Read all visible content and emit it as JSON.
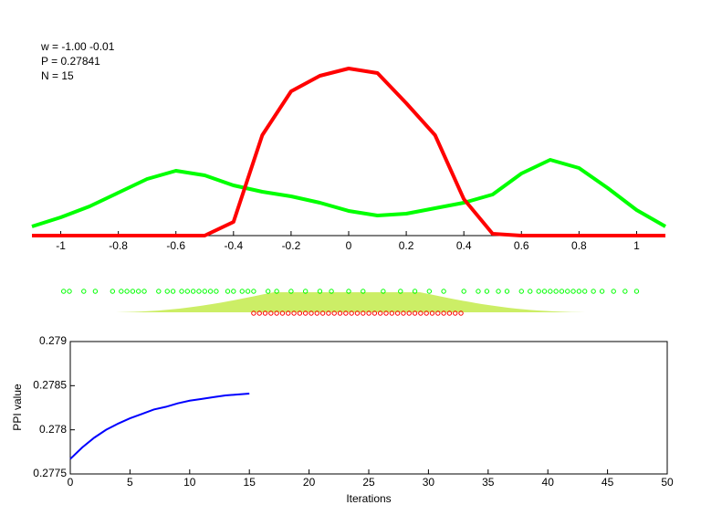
{
  "chart_data": [
    {
      "type": "line",
      "annotations": [
        "w = -1.00  -0.01",
        "P = 0.27841",
        "N = 15"
      ],
      "x": [
        -1.1,
        -1.0,
        -0.9,
        -0.8,
        -0.7,
        -0.6,
        -0.5,
        -0.4,
        -0.3,
        -0.2,
        -0.1,
        0,
        0.1,
        0.2,
        0.3,
        0.4,
        0.5,
        0.6,
        0.7,
        0.8,
        0.9,
        1.0,
        1.1
      ],
      "series": [
        {
          "color": "#00ff00",
          "values": [
            0.1,
            0.2,
            0.32,
            0.47,
            0.62,
            0.71,
            0.66,
            0.55,
            0.48,
            0.43,
            0.36,
            0.27,
            0.22,
            0.24,
            0.3,
            0.36,
            0.45,
            0.68,
            0.83,
            0.74,
            0.52,
            0.28,
            0.1
          ]
        },
        {
          "color": "#ff0000",
          "values": [
            0,
            0,
            0,
            0,
            0,
            0,
            0,
            0.15,
            1.1,
            1.58,
            1.75,
            1.83,
            1.78,
            1.45,
            1.1,
            0.4,
            0.02,
            0,
            0,
            0,
            0,
            0,
            0
          ]
        }
      ],
      "xlim": [
        -1.1,
        1.1
      ],
      "xticks": [
        -1,
        -0.8,
        -0.6,
        -0.4,
        -0.2,
        0,
        0.2,
        0.4,
        0.6,
        0.8,
        1
      ]
    },
    {
      "type": "strip",
      "series": [
        {
          "color": "#00ff00",
          "values": [
            -0.99,
            -0.97,
            -0.92,
            -0.88,
            -0.82,
            -0.79,
            -0.77,
            -0.75,
            -0.73,
            -0.71,
            -0.66,
            -0.63,
            -0.61,
            -0.58,
            -0.56,
            -0.54,
            -0.52,
            -0.5,
            -0.48,
            -0.46,
            -0.42,
            -0.4,
            -0.37,
            -0.35,
            -0.33,
            -0.28,
            -0.25,
            -0.2,
            -0.15,
            -0.1,
            -0.06,
            0.0,
            0.05,
            0.12,
            0.18,
            0.23,
            0.28,
            0.33,
            0.4,
            0.45,
            0.48,
            0.52,
            0.55,
            0.6,
            0.63,
            0.66,
            0.68,
            0.7,
            0.72,
            0.74,
            0.76,
            0.78,
            0.8,
            0.82,
            0.85,
            0.88,
            0.92,
            0.96,
            1.0
          ]
        },
        {
          "color": "#ff0000",
          "values": [
            -0.33,
            -0.31,
            -0.29,
            -0.27,
            -0.25,
            -0.23,
            -0.21,
            -0.19,
            -0.17,
            -0.15,
            -0.13,
            -0.11,
            -0.09,
            -0.07,
            -0.05,
            -0.03,
            -0.01,
            0.01,
            0.03,
            0.05,
            0.07,
            0.09,
            0.11,
            0.13,
            0.15,
            0.17,
            0.19,
            0.21,
            0.23,
            0.25,
            0.27,
            0.29,
            0.31,
            0.33,
            0.35,
            0.37,
            0.39
          ]
        }
      ]
    },
    {
      "type": "line",
      "xlabel": "Iterations",
      "ylabel": "PPI value",
      "x": [
        0,
        1,
        2,
        3,
        4,
        5,
        6,
        7,
        8,
        9,
        10,
        11,
        12,
        13,
        14,
        15
      ],
      "series": [
        {
          "color": "#0000ff",
          "values": [
            0.27767,
            0.2778,
            0.27791,
            0.278,
            0.27807,
            0.27813,
            0.27818,
            0.27823,
            0.27826,
            0.2783,
            0.27833,
            0.27835,
            0.27837,
            0.27839,
            0.2784,
            0.27841
          ]
        }
      ],
      "xlim": [
        0,
        50
      ],
      "ylim": [
        0.2775,
        0.279
      ],
      "xticks": [
        0,
        5,
        10,
        15,
        20,
        25,
        30,
        35,
        40,
        45,
        50
      ],
      "yticks": [
        0.2775,
        0.278,
        0.2785,
        0.279
      ]
    }
  ]
}
